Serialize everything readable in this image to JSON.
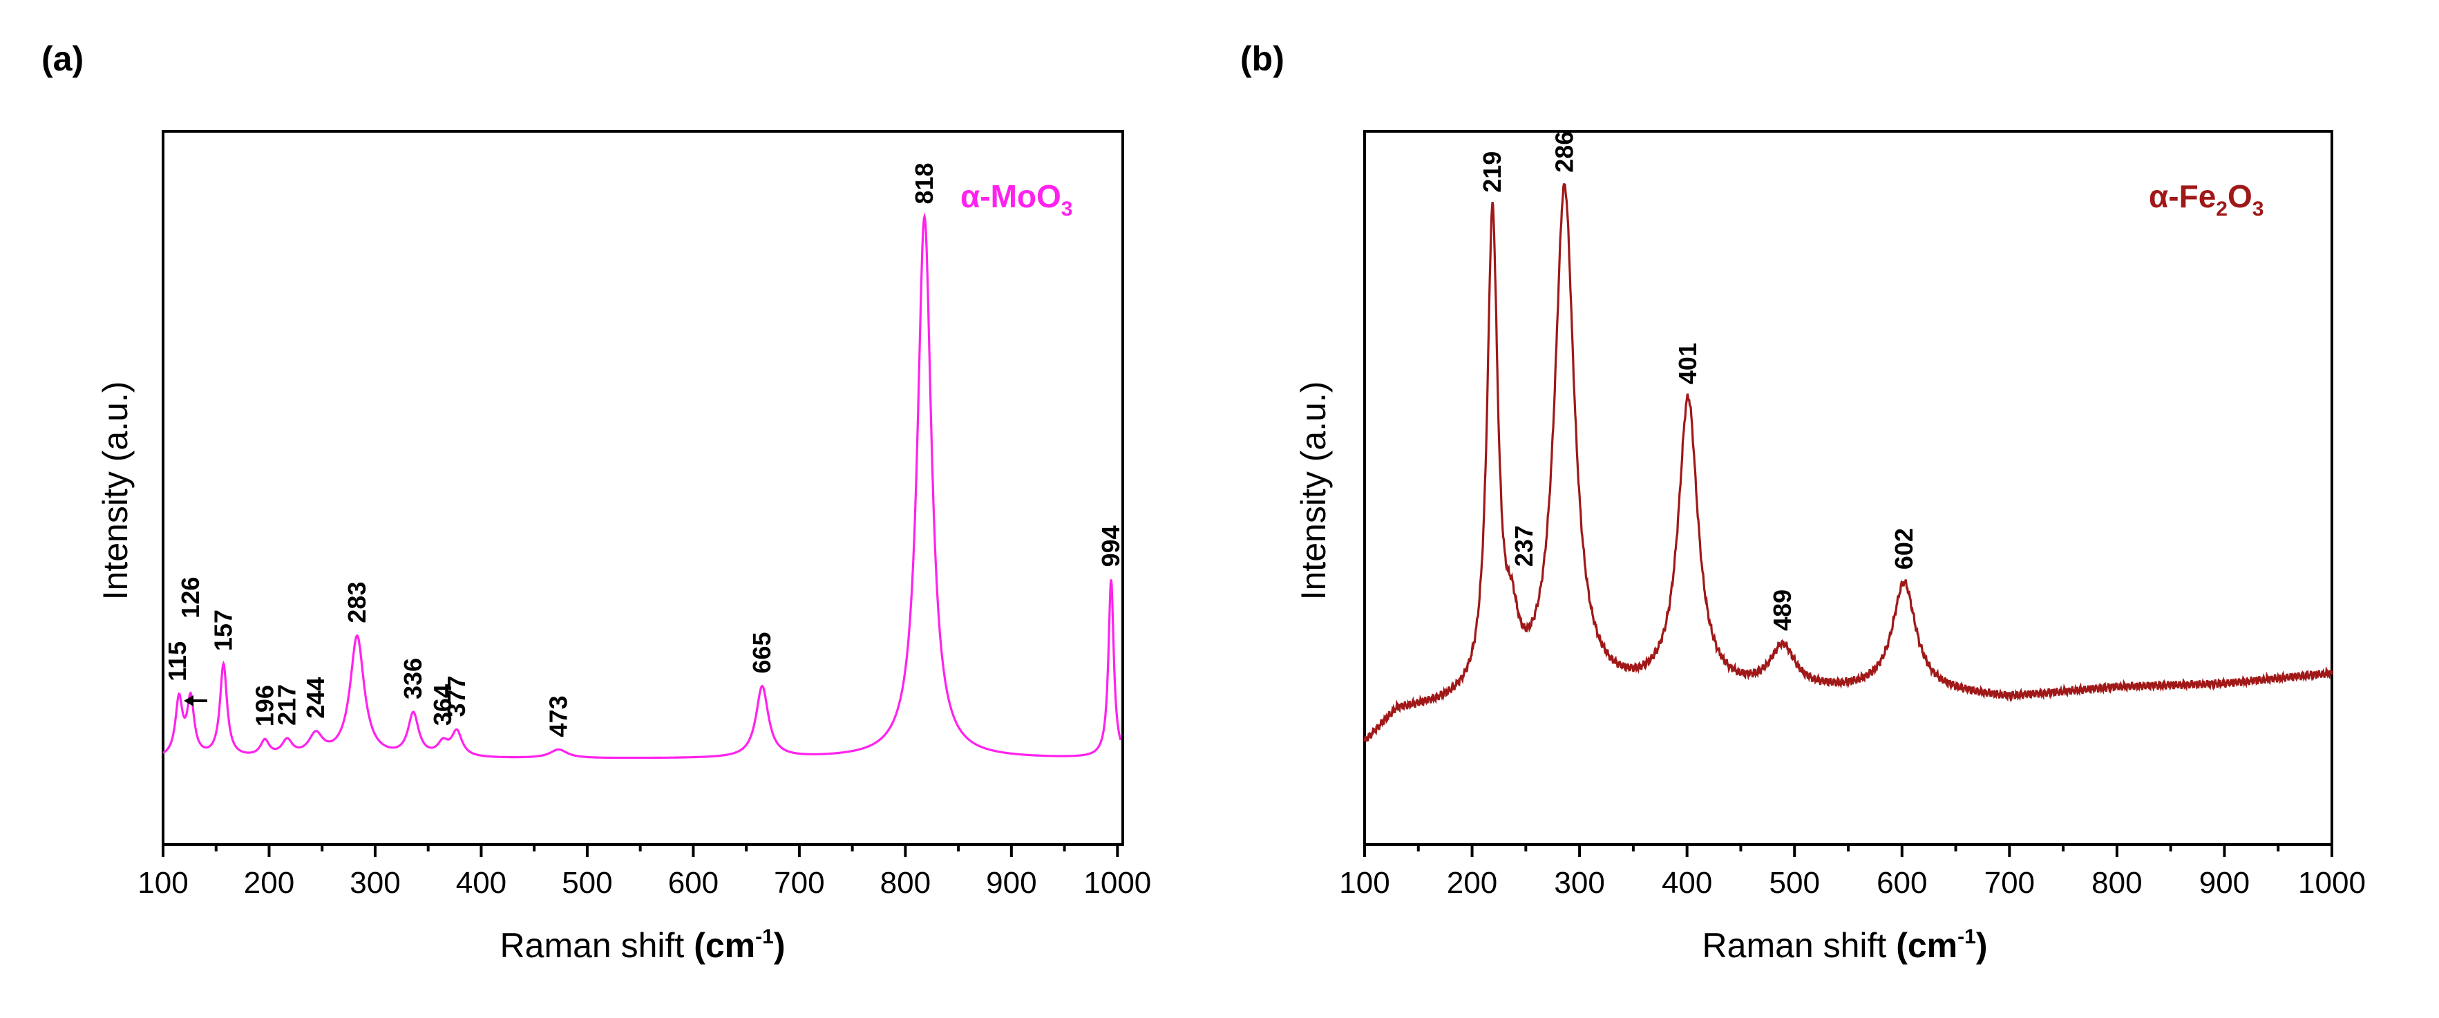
{
  "chart_data": [
    {
      "type": "line",
      "panel_label": "(a)",
      "sample": {
        "prefix": "α-MoO",
        "sub": "3",
        "color": "#ff22ee"
      },
      "xlabel": {
        "text": "Raman shift ",
        "unit": "cm",
        "sup": "-1",
        "open": "(",
        "close": ")"
      },
      "ylabel": "Intensity (a.u.)",
      "xlim": [
        100,
        1005
      ],
      "ylim": [
        0,
        100
      ],
      "xticks": [
        100,
        200,
        300,
        400,
        500,
        600,
        700,
        800,
        900,
        1000
      ],
      "xtick_labels": [
        "100",
        "200",
        "300",
        "400",
        "500",
        "600",
        "700",
        "800",
        "900",
        "1000"
      ],
      "yticks_shown": false,
      "baseline": 12,
      "peaks": [
        {
          "x": 115,
          "h": 8,
          "w": 4
        },
        {
          "x": 126,
          "h": 8,
          "w": 4
        },
        {
          "x": 157,
          "h": 13,
          "w": 4
        },
        {
          "x": 196,
          "h": 2.2,
          "w": 5
        },
        {
          "x": 217,
          "h": 2.2,
          "w": 6
        },
        {
          "x": 244,
          "h": 3,
          "w": 8
        },
        {
          "x": 283,
          "h": 17,
          "w": 8
        },
        {
          "x": 336,
          "h": 6,
          "w": 6
        },
        {
          "x": 364,
          "h": 1.8,
          "w": 6
        },
        {
          "x": 377,
          "h": 3.5,
          "w": 6
        },
        {
          "x": 473,
          "h": 1.2,
          "w": 10
        },
        {
          "x": 665,
          "h": 10,
          "w": 7
        },
        {
          "x": 818,
          "h": 76,
          "w": 8
        },
        {
          "x": 994,
          "h": 25,
          "w": 3
        }
      ],
      "peak_labels": [
        {
          "x": 115,
          "text": "115"
        },
        {
          "x": 126,
          "text": "126"
        },
        {
          "x": 157,
          "text": "157"
        },
        {
          "x": 196,
          "text": "196"
        },
        {
          "x": 217,
          "text": "217"
        },
        {
          "x": 244,
          "text": "244"
        },
        {
          "x": 283,
          "text": "283"
        },
        {
          "x": 336,
          "text": "336"
        },
        {
          "x": 364,
          "text": "364"
        },
        {
          "x": 377,
          "text": "377"
        },
        {
          "x": 473,
          "text": "473"
        },
        {
          "x": 665,
          "text": "665"
        },
        {
          "x": 818,
          "text": "818"
        },
        {
          "x": 994,
          "text": "994"
        }
      ]
    },
    {
      "type": "line",
      "panel_label": "(b)",
      "sample": {
        "prefix": "α-Fe",
        "sub1": "2",
        "mid": "O",
        "sub2": "3",
        "color": "#a01818"
      },
      "xlabel": {
        "text": "Raman shift ",
        "unit": "cm",
        "sup": "-1",
        "open": "(",
        "close": ")"
      },
      "ylabel": "Intensity (a.u.)",
      "xlim": [
        100,
        1000
      ],
      "ylim": [
        0,
        100
      ],
      "xticks": [
        100,
        200,
        300,
        400,
        500,
        600,
        700,
        800,
        900,
        1000
      ],
      "xtick_labels": [
        "100",
        "200",
        "300",
        "400",
        "500",
        "600",
        "700",
        "800",
        "900",
        "1000"
      ],
      "yticks_shown": false,
      "baseline_points": [
        [
          100,
          14
        ],
        [
          130,
          18.5
        ],
        [
          200,
          19.5
        ],
        [
          300,
          20.5
        ],
        [
          450,
          21
        ],
        [
          600,
          21.5
        ],
        [
          700,
          20.5
        ],
        [
          800,
          22
        ],
        [
          900,
          22.5
        ],
        [
          1000,
          24
        ]
      ],
      "peaks": [
        {
          "x": 219,
          "h": 67,
          "w": 6
        },
        {
          "x": 237,
          "h": 7,
          "w": 7
        },
        {
          "x": 286,
          "h": 71,
          "w": 11
        },
        {
          "x": 401,
          "h": 41,
          "w": 11
        },
        {
          "x": 489,
          "h": 6,
          "w": 14
        },
        {
          "x": 602,
          "h": 15,
          "w": 13
        }
      ],
      "peak_labels": [
        {
          "x": 219,
          "text": "219"
        },
        {
          "x": 237,
          "text": "237"
        },
        {
          "x": 286,
          "text": "286"
        },
        {
          "x": 401,
          "text": "401"
        },
        {
          "x": 489,
          "text": "489"
        },
        {
          "x": 602,
          "text": "602"
        }
      ]
    }
  ]
}
